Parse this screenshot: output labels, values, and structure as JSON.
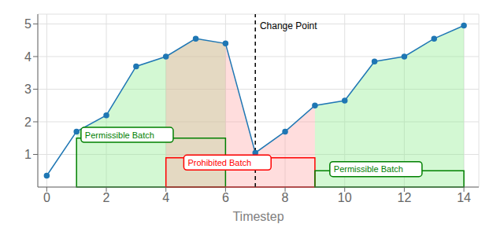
{
  "chart_data": {
    "type": "line",
    "x": [
      0,
      1,
      2,
      3,
      4,
      5,
      6,
      7,
      8,
      9,
      10,
      11,
      12,
      13,
      14
    ],
    "values": [
      0.35,
      1.7,
      2.2,
      3.7,
      4.0,
      4.55,
      4.4,
      1.05,
      1.7,
      2.5,
      2.65,
      3.85,
      4.0,
      4.55,
      4.95
    ],
    "color": "#1f77b4",
    "marker": "o",
    "xlabel": "Timestep",
    "xlim": [
      -0.3,
      14.5
    ],
    "ylim": [
      0,
      5.3
    ],
    "xticks": [
      0,
      2,
      4,
      6,
      8,
      10,
      12,
      14
    ],
    "yticks": [
      1,
      2,
      3,
      4,
      5
    ],
    "grid": true,
    "regions": [
      {
        "label": "Permissible Batch",
        "x1": 1,
        "x2": 6,
        "height": 1.5,
        "color": "green",
        "fill_color": "#90ee90",
        "label_x": 1.15,
        "label_y": 1.6
      },
      {
        "label": "Prohibited Batch",
        "x1": 4,
        "x2": 9,
        "height": 0.9,
        "color": "red",
        "fill_color": "#ffaaaa",
        "label_x": 4.6,
        "label_y": 0.75
      },
      {
        "label": "Permissible Batch",
        "x1": 9,
        "x2": 14,
        "height": 0.5,
        "color": "green",
        "fill_color": "#90ee90",
        "label_x": 9.5,
        "label_y": 0.55
      }
    ],
    "change_point": {
      "x": 7,
      "label": "Change Point",
      "line_style": "dashed",
      "label_x": 7.15,
      "label_y": 5.05
    }
  }
}
